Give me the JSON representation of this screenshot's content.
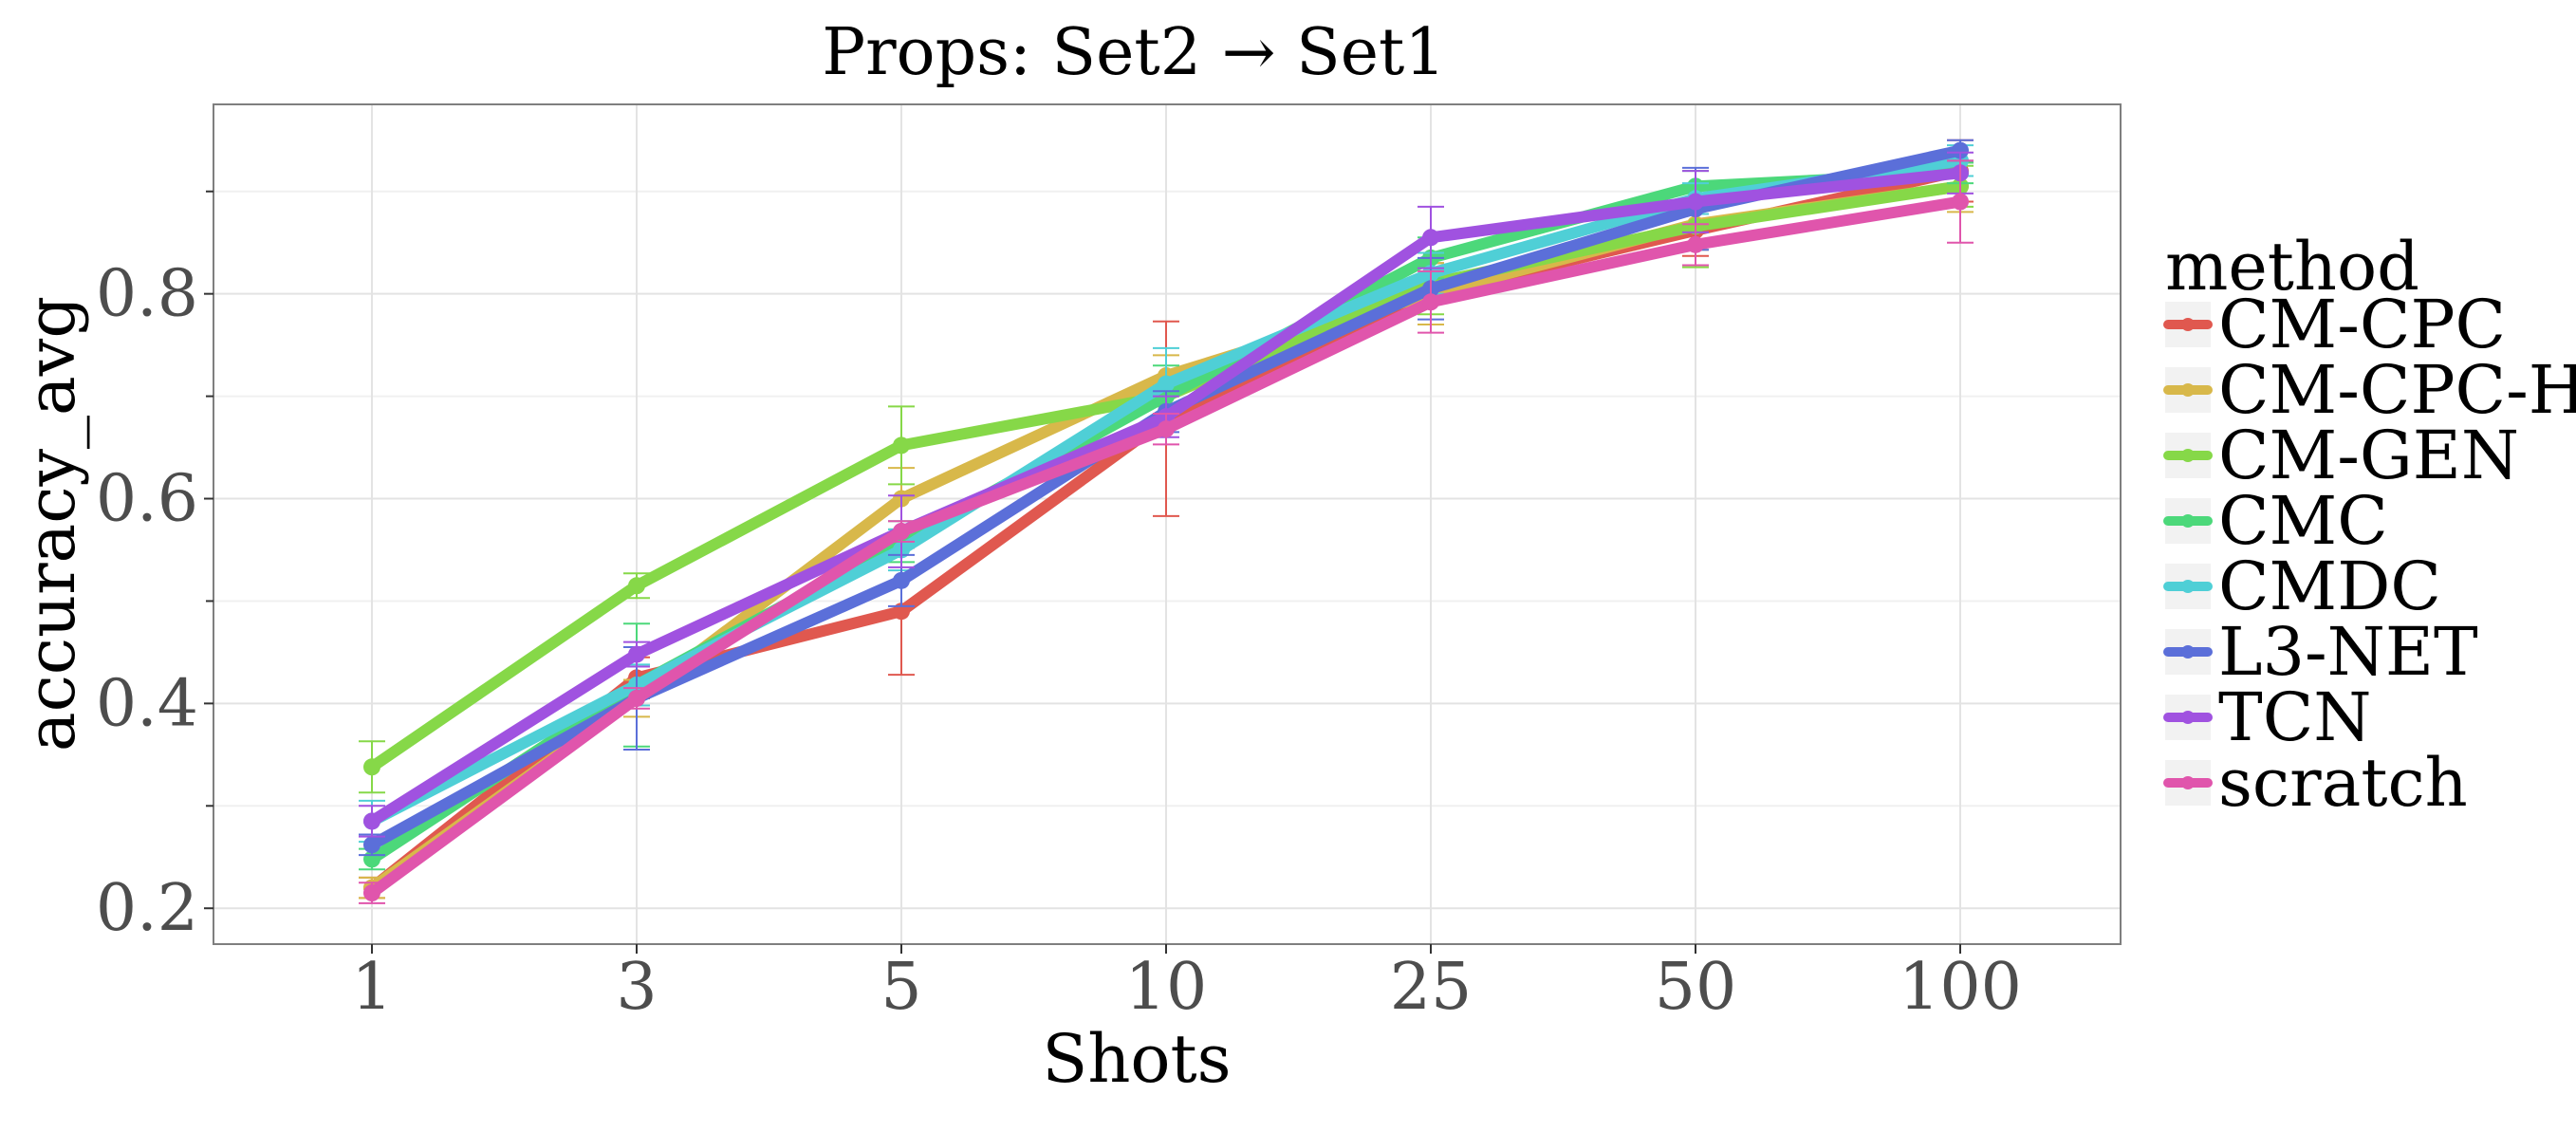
{
  "chart_data": {
    "type": "line",
    "title": "Props: Set2 → Set1",
    "xlabel": "Shots",
    "ylabel": "accuracy_avg",
    "x_scale": "categorical",
    "categories": [
      "1",
      "3",
      "5",
      "10",
      "25",
      "50",
      "100"
    ],
    "ylim": [
      0.165,
      0.985
    ],
    "y_ticks": [
      "0.2",
      "0.4",
      "0.6",
      "0.8"
    ],
    "grid": true,
    "legend_title": "method",
    "legend_position": "right",
    "series": [
      {
        "name": "CM-CPC",
        "color": "#e0584f",
        "values": [
          0.22,
          0.425,
          0.49,
          0.678,
          0.8,
          0.862,
          0.92
        ],
        "errors": [
          0.01,
          0.02,
          0.062,
          0.095,
          0.03,
          0.025,
          0.03
        ]
      },
      {
        "name": "CM-CPC-H",
        "color": "#d8b84a",
        "values": [
          0.22,
          0.405,
          0.6,
          0.72,
          0.8,
          0.868,
          0.905
        ],
        "errors": [
          0.01,
          0.018,
          0.03,
          0.02,
          0.03,
          0.025,
          0.025
        ]
      },
      {
        "name": "CM-GEN",
        "color": "#86d848",
        "values": [
          0.338,
          0.515,
          0.652,
          0.7,
          0.81,
          0.866,
          0.905
        ],
        "errors": [
          0.025,
          0.012,
          0.038,
          0.01,
          0.03,
          0.04,
          0.02
        ]
      },
      {
        "name": "CMC",
        "color": "#4cd87a",
        "values": [
          0.248,
          0.418,
          0.558,
          0.7,
          0.835,
          0.905,
          0.918
        ],
        "errors": [
          0.01,
          0.06,
          0.02,
          0.03,
          0.02,
          0.015,
          0.01
        ]
      },
      {
        "name": "CMDC",
        "color": "#4fcfd6",
        "values": [
          0.285,
          0.418,
          0.55,
          0.712,
          0.82,
          0.893,
          0.93
        ],
        "errors": [
          0.02,
          0.02,
          0.02,
          0.035,
          0.02,
          0.015,
          0.015
        ]
      },
      {
        "name": "L3-NET",
        "color": "#5b6fd9",
        "values": [
          0.262,
          0.405,
          0.52,
          0.685,
          0.805,
          0.883,
          0.94
        ],
        "errors": [
          0.01,
          0.05,
          0.025,
          0.02,
          0.03,
          0.04,
          0.01
        ]
      },
      {
        "name": "TCN",
        "color": "#a052e0",
        "values": [
          0.285,
          0.448,
          0.568,
          0.68,
          0.855,
          0.89,
          0.918
        ],
        "errors": [
          0.015,
          0.012,
          0.035,
          0.02,
          0.03,
          0.03,
          0.02
        ]
      },
      {
        "name": "scratch",
        "color": "#e055ac",
        "values": [
          0.215,
          0.405,
          0.568,
          0.668,
          0.792,
          0.848,
          0.89
        ],
        "errors": [
          0.01,
          0.01,
          0.01,
          0.015,
          0.03,
          0.02,
          0.04
        ]
      }
    ]
  }
}
